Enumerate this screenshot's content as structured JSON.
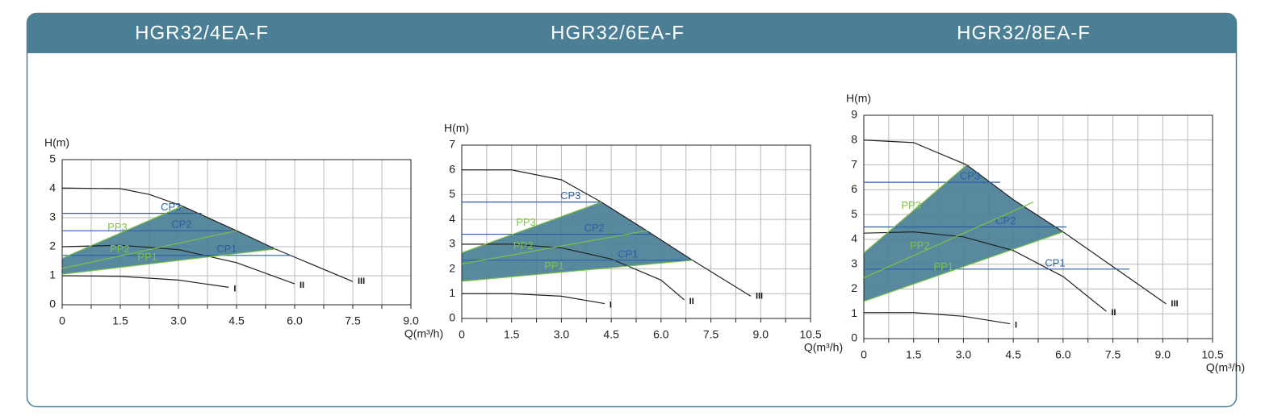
{
  "chart_data": [
    {
      "type": "line",
      "title": "HGR32/4EA-F",
      "y_label": "H(m)",
      "x_label": "Q(m³/h)",
      "xlim": [
        0,
        9
      ],
      "ylim": [
        0,
        5
      ],
      "xticks": [
        0,
        1.5,
        {
          "value": 3,
          "label": "3.0"
        },
        4.5,
        {
          "value": 6,
          "label": "6.0"
        },
        7.5,
        {
          "value": 9,
          "label": "9.0"
        }
      ],
      "yticks": [
        0,
        1,
        2,
        3,
        4,
        5
      ],
      "grid": true,
      "fill_color": "#4a7f96",
      "series": [
        {
          "name": "I",
          "color": "#222222",
          "x": [
            0,
            1.5,
            3.0,
            4.3
          ],
          "values": [
            1.0,
            0.98,
            0.85,
            0.6
          ]
        },
        {
          "name": "II",
          "color": "#222222",
          "x": [
            0,
            1.5,
            3.0,
            4.5,
            6.0
          ],
          "values": [
            2.0,
            2.05,
            1.9,
            1.45,
            0.72
          ]
        },
        {
          "name": "III",
          "color": "#222222",
          "x": [
            0,
            1.5,
            2.25,
            3.1,
            4.5,
            5.5,
            7.5
          ],
          "values": [
            4.02,
            4.0,
            3.8,
            3.4,
            2.55,
            1.92,
            0.8
          ]
        },
        {
          "name": "CP1",
          "color": "#2a5fa8",
          "x": [
            0,
            5.9
          ],
          "values": [
            1.7,
            1.7
          ]
        },
        {
          "name": "CP2",
          "color": "#2a5fa8",
          "x": [
            0,
            4.4
          ],
          "values": [
            2.55,
            2.55
          ]
        },
        {
          "name": "CP3",
          "color": "#2a5fa8",
          "x": [
            0,
            3.6
          ],
          "values": [
            3.15,
            3.15
          ]
        },
        {
          "name": "PP1",
          "color": "#7dc242",
          "x": [
            0,
            5.5
          ],
          "values": [
            1.05,
            1.92
          ]
        },
        {
          "name": "PP2",
          "color": "#7dc242",
          "x": [
            0,
            4.5
          ],
          "values": [
            1.25,
            2.55
          ]
        },
        {
          "name": "PP3",
          "color": "#7dc242",
          "x": [
            0,
            3.1
          ],
          "values": [
            1.6,
            3.4
          ]
        }
      ]
    },
    {
      "type": "line",
      "title": "HGR32/6EA-F",
      "y_label": "H(m)",
      "x_label": "Q(m³/h)",
      "xlim": [
        0,
        10.5
      ],
      "ylim": [
        0,
        7
      ],
      "xticks": [
        0,
        1.5,
        {
          "value": 3,
          "label": "3.0"
        },
        4.5,
        {
          "value": 6,
          "label": "6.0"
        },
        7.5,
        {
          "value": 9,
          "label": "9.0"
        },
        10.5
      ],
      "yticks": [
        0,
        1,
        2,
        3,
        4,
        5,
        6,
        7
      ],
      "grid": true,
      "fill_color": "#4a7f96",
      "series": [
        {
          "name": "I",
          "color": "#222222",
          "x": [
            0,
            1.5,
            3.0,
            4.3
          ],
          "values": [
            1.0,
            1.0,
            0.9,
            0.6
          ]
        },
        {
          "name": "II",
          "color": "#222222",
          "x": [
            0,
            1.5,
            3.0,
            4.5,
            6.0,
            6.7
          ],
          "values": [
            3.0,
            3.0,
            2.85,
            2.4,
            1.55,
            0.75
          ]
        },
        {
          "name": "III",
          "color": "#222222",
          "x": [
            0,
            1.5,
            3.0,
            4.2,
            5.5,
            6.95,
            8.7
          ],
          "values": [
            6.0,
            6.0,
            5.6,
            4.7,
            3.6,
            2.35,
            0.9
          ]
        },
        {
          "name": "CP1",
          "color": "#2a5fa8",
          "x": [
            0,
            6.95
          ],
          "values": [
            2.35,
            2.35
          ]
        },
        {
          "name": "CP2",
          "color": "#2a5fa8",
          "x": [
            0,
            5.7
          ],
          "values": [
            3.4,
            3.4
          ]
        },
        {
          "name": "CP3",
          "color": "#2a5fa8",
          "x": [
            0,
            4.2
          ],
          "values": [
            4.7,
            4.7
          ]
        },
        {
          "name": "PP1",
          "color": "#7dc242",
          "x": [
            0,
            6.95
          ],
          "values": [
            1.5,
            2.35
          ]
        },
        {
          "name": "PP2",
          "color": "#7dc242",
          "x": [
            0,
            5.6
          ],
          "values": [
            2.2,
            3.55
          ]
        },
        {
          "name": "PP3",
          "color": "#7dc242",
          "x": [
            0,
            4.2
          ],
          "values": [
            2.65,
            4.7
          ]
        }
      ]
    },
    {
      "type": "line",
      "title": "HGR32/8EA-F",
      "y_label": "H(m)",
      "x_label": "Q(m³/h)",
      "xlim": [
        0,
        10.5
      ],
      "ylim": [
        0,
        9
      ],
      "xticks": [
        0,
        1.5,
        {
          "value": 3,
          "label": "3.0"
        },
        4.5,
        {
          "value": 6,
          "label": "6.0"
        },
        7.5,
        {
          "value": 9,
          "label": "9.0"
        },
        10.5
      ],
      "yticks": [
        0,
        1,
        2,
        3,
        4,
        5,
        6,
        7,
        8,
        9
      ],
      "grid": true,
      "fill_color": "#4a7f96",
      "series": [
        {
          "name": "I",
          "color": "#222222",
          "x": [
            0,
            1.5,
            3.0,
            4.4
          ],
          "values": [
            1.05,
            1.05,
            0.9,
            0.6
          ]
        },
        {
          "name": "II",
          "color": "#222222",
          "x": [
            0,
            1.5,
            3.0,
            4.5,
            6.0,
            7.3
          ],
          "values": [
            4.25,
            4.3,
            4.1,
            3.55,
            2.5,
            1.1
          ]
        },
        {
          "name": "III",
          "color": "#222222",
          "x": [
            0,
            1.5,
            3.1,
            4.5,
            6.0,
            7.5,
            9.1
          ],
          "values": [
            8.0,
            7.9,
            7.0,
            5.6,
            4.3,
            2.9,
            1.4
          ]
        },
        {
          "name": "CP1",
          "color": "#2a5fa8",
          "x": [
            0,
            8.0
          ],
          "values": [
            2.8,
            2.8
          ]
        },
        {
          "name": "CP2",
          "color": "#2a5fa8",
          "x": [
            0,
            6.1
          ],
          "values": [
            4.5,
            4.5
          ]
        },
        {
          "name": "CP3",
          "color": "#2a5fa8",
          "x": [
            0,
            4.1
          ],
          "values": [
            6.3,
            6.3
          ]
        },
        {
          "name": "PP1",
          "color": "#7dc242",
          "x": [
            0,
            6.0
          ],
          "values": [
            1.5,
            4.3
          ]
        },
        {
          "name": "PP2",
          "color": "#7dc242",
          "x": [
            0,
            5.1
          ],
          "values": [
            2.45,
            5.5
          ]
        },
        {
          "name": "PP3",
          "color": "#7dc242",
          "x": [
            0,
            3.1
          ],
          "values": [
            3.45,
            7.0
          ]
        }
      ]
    }
  ]
}
